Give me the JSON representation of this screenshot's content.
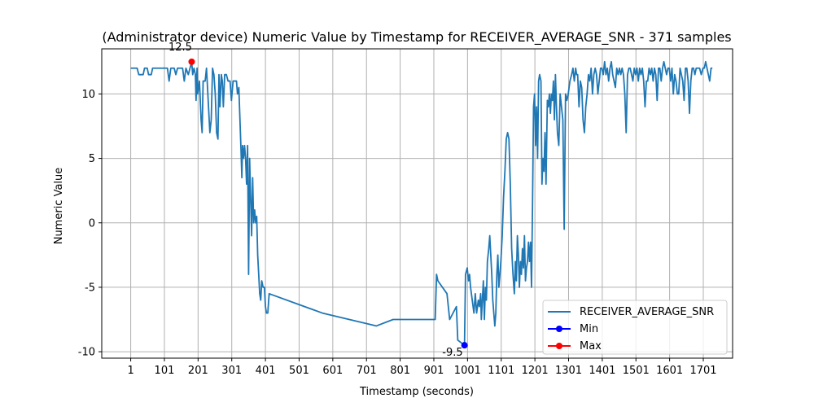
{
  "chart_data": {
    "type": "line",
    "title": "(Administrator device) Numeric Value by Timestamp for RECEIVER_AVERAGE_SNR - 371 samples",
    "xlabel": "Timestamp (seconds)",
    "ylabel": "Numeric Value",
    "xlim": [
      -85,
      1788
    ],
    "ylim": [
      -10.5,
      13.5
    ],
    "x_ticks": [
      1,
      101,
      201,
      301,
      401,
      501,
      601,
      701,
      801,
      901,
      1001,
      1101,
      1201,
      1301,
      1401,
      1501,
      1601,
      1701
    ],
    "y_ticks": [
      -10,
      -5,
      0,
      5,
      10
    ],
    "grid": true,
    "legend_placement": "lower-right",
    "colors": {
      "series": "#1f77b4",
      "min": "#0000ff",
      "max": "#ff0000",
      "grid": "#b0b0b0"
    },
    "series": [
      {
        "name": "RECEIVER_AVERAGE_SNR",
        "points": [
          [
            1,
            12
          ],
          [
            20,
            12
          ],
          [
            25,
            11.5
          ],
          [
            38,
            11.5
          ],
          [
            42,
            12
          ],
          [
            50,
            12
          ],
          [
            54,
            11.5
          ],
          [
            62,
            11.5
          ],
          [
            66,
            12
          ],
          [
            110,
            12
          ],
          [
            115,
            11
          ],
          [
            120,
            12
          ],
          [
            130,
            12
          ],
          [
            135,
            11.5
          ],
          [
            140,
            12
          ],
          [
            155,
            12
          ],
          [
            160,
            11
          ],
          [
            165,
            12
          ],
          [
            172,
            11.5
          ],
          [
            177,
            12
          ],
          [
            182,
            12.5
          ],
          [
            185,
            11.5
          ],
          [
            189,
            12
          ],
          [
            193,
            11.5
          ],
          [
            195,
            9.5
          ],
          [
            198,
            12
          ],
          [
            200,
            10
          ],
          [
            205,
            11
          ],
          [
            210,
            8
          ],
          [
            213,
            7
          ],
          [
            216,
            11
          ],
          [
            222,
            11
          ],
          [
            226,
            12
          ],
          [
            230,
            10
          ],
          [
            236,
            7
          ],
          [
            240,
            8
          ],
          [
            244,
            12
          ],
          [
            248,
            11.5
          ],
          [
            252,
            10
          ],
          [
            256,
            7
          ],
          [
            260,
            6.5
          ],
          [
            263,
            11.5
          ],
          [
            266,
            9
          ],
          [
            270,
            11.5
          ],
          [
            273,
            11
          ],
          [
            276,
            9
          ],
          [
            280,
            11.5
          ],
          [
            285,
            11.5
          ],
          [
            290,
            11
          ],
          [
            296,
            11
          ],
          [
            300,
            9.5
          ],
          [
            305,
            11
          ],
          [
            315,
            11
          ],
          [
            318,
            10
          ],
          [
            322,
            10.5
          ],
          [
            328,
            6
          ],
          [
            331,
            3.5
          ],
          [
            333,
            6
          ],
          [
            336,
            5
          ],
          [
            339,
            6
          ],
          [
            342,
            5
          ],
          [
            345,
            3
          ],
          [
            348,
            6
          ],
          [
            351,
            -4
          ],
          [
            354,
            5
          ],
          [
            357,
            2
          ],
          [
            360,
            -1
          ],
          [
            363,
            3.5
          ],
          [
            366,
            0
          ],
          [
            369,
            1
          ],
          [
            372,
            0
          ],
          [
            375,
            0.5
          ],
          [
            378,
            -2.5
          ],
          [
            381,
            -4
          ],
          [
            384,
            -5.5
          ],
          [
            387,
            -6
          ],
          [
            390,
            -4.5
          ],
          [
            394,
            -5
          ],
          [
            398,
            -5
          ],
          [
            401,
            -6.5
          ],
          [
            404,
            -7
          ],
          [
            408,
            -7
          ],
          [
            412,
            -5.5
          ],
          [
            570,
            -7
          ],
          [
            730,
            -8
          ],
          [
            780,
            -7.5
          ],
          [
            905,
            -7.5
          ],
          [
            909,
            -4
          ],
          [
            913,
            -4.5
          ],
          [
            940,
            -5.5
          ],
          [
            948,
            -7.5
          ],
          [
            968,
            -6.5
          ],
          [
            972,
            -9.1
          ],
          [
            992,
            -9.5
          ],
          [
            995,
            -4
          ],
          [
            1000,
            -3.5
          ],
          [
            1004,
            -4.5
          ],
          [
            1007,
            -4
          ],
          [
            1010,
            -5
          ],
          [
            1015,
            -6
          ],
          [
            1020,
            -7
          ],
          [
            1024,
            -5.5
          ],
          [
            1028,
            -7
          ],
          [
            1033,
            -6
          ],
          [
            1036,
            -6.5
          ],
          [
            1040,
            -5.5
          ],
          [
            1042,
            -7.5
          ],
          [
            1045,
            -6
          ],
          [
            1048,
            -4.5
          ],
          [
            1051,
            -7.5
          ],
          [
            1054,
            -5
          ],
          [
            1057,
            -6
          ],
          [
            1060,
            -3
          ],
          [
            1064,
            -2
          ],
          [
            1067,
            -1
          ],
          [
            1070,
            -2.5
          ],
          [
            1073,
            -4
          ],
          [
            1076,
            -6
          ],
          [
            1079,
            -7
          ],
          [
            1082,
            -8
          ],
          [
            1085,
            -7
          ],
          [
            1088,
            -4
          ],
          [
            1091,
            -2.5
          ],
          [
            1094,
            -5
          ],
          [
            1097,
            -4
          ],
          [
            1100,
            -3
          ],
          [
            1104,
            -1
          ],
          [
            1108,
            2
          ],
          [
            1112,
            4
          ],
          [
            1116,
            6.5
          ],
          [
            1120,
            7
          ],
          [
            1124,
            6.5
          ],
          [
            1128,
            3
          ],
          [
            1132,
            -2
          ],
          [
            1136,
            -4
          ],
          [
            1140,
            -5.5
          ],
          [
            1143,
            -3
          ],
          [
            1146,
            -4.5
          ],
          [
            1149,
            -1
          ],
          [
            1152,
            -2.5
          ],
          [
            1155,
            -5
          ],
          [
            1158,
            -3
          ],
          [
            1161,
            -4
          ],
          [
            1164,
            -2
          ],
          [
            1167,
            -3.5
          ],
          [
            1170,
            -1
          ],
          [
            1173,
            -4.5
          ],
          [
            1176,
            -3.5
          ],
          [
            1179,
            -3
          ],
          [
            1182,
            -1.5
          ],
          [
            1185,
            -3
          ],
          [
            1188,
            -1.5
          ],
          [
            1191,
            -5
          ],
          [
            1194,
            1.5
          ],
          [
            1197,
            9
          ],
          [
            1200,
            10
          ],
          [
            1203,
            6
          ],
          [
            1206,
            9
          ],
          [
            1209,
            5
          ],
          [
            1212,
            11
          ],
          [
            1215,
            11.5
          ],
          [
            1219,
            11
          ],
          [
            1222,
            3
          ],
          [
            1225,
            5
          ],
          [
            1228,
            4
          ],
          [
            1231,
            7
          ],
          [
            1234,
            3
          ],
          [
            1238,
            9.5
          ],
          [
            1241,
            9
          ],
          [
            1244,
            10
          ],
          [
            1247,
            8.5
          ],
          [
            1250,
            10
          ],
          [
            1253,
            9.5
          ],
          [
            1256,
            11
          ],
          [
            1259,
            8
          ],
          [
            1262,
            11.5
          ],
          [
            1265,
            9
          ],
          [
            1268,
            7
          ],
          [
            1272,
            6
          ],
          [
            1276,
            10
          ],
          [
            1280,
            9
          ],
          [
            1284,
            8
          ],
          [
            1288,
            -0.5
          ],
          [
            1292,
            10
          ],
          [
            1296,
            9.5
          ],
          [
            1300,
            10
          ],
          [
            1305,
            11
          ],
          [
            1310,
            11.5
          ],
          [
            1314,
            12
          ],
          [
            1318,
            11
          ],
          [
            1322,
            12
          ],
          [
            1325,
            11.5
          ],
          [
            1328,
            11.5
          ],
          [
            1332,
            9
          ],
          [
            1336,
            11
          ],
          [
            1340,
            10.5
          ],
          [
            1344,
            8
          ],
          [
            1348,
            7
          ],
          [
            1352,
            9
          ],
          [
            1356,
            10
          ],
          [
            1360,
            11.5
          ],
          [
            1364,
            11
          ],
          [
            1368,
            12
          ],
          [
            1372,
            10
          ],
          [
            1376,
            11.5
          ],
          [
            1380,
            12
          ],
          [
            1384,
            11.5
          ],
          [
            1388,
            10
          ],
          [
            1392,
            11
          ],
          [
            1396,
            12
          ],
          [
            1400,
            12
          ],
          [
            1404,
            11.5
          ],
          [
            1408,
            12.5
          ],
          [
            1412,
            11.5
          ],
          [
            1416,
            12
          ],
          [
            1420,
            11
          ],
          [
            1424,
            12
          ],
          [
            1428,
            12.5
          ],
          [
            1432,
            11.5
          ],
          [
            1436,
            11
          ],
          [
            1440,
            10.5
          ],
          [
            1444,
            12
          ],
          [
            1448,
            11.5
          ],
          [
            1452,
            12
          ],
          [
            1456,
            11.5
          ],
          [
            1460,
            12
          ],
          [
            1464,
            11.5
          ],
          [
            1468,
            10
          ],
          [
            1472,
            7
          ],
          [
            1476,
            11.5
          ],
          [
            1480,
            12
          ],
          [
            1484,
            12
          ],
          [
            1488,
            11.5
          ],
          [
            1492,
            11
          ],
          [
            1496,
            12
          ],
          [
            1500,
            11.5
          ],
          [
            1504,
            12
          ],
          [
            1508,
            11
          ],
          [
            1512,
            12
          ],
          [
            1516,
            11.5
          ],
          [
            1520,
            12
          ],
          [
            1524,
            11
          ],
          [
            1528,
            9
          ],
          [
            1532,
            11
          ],
          [
            1536,
            11
          ],
          [
            1540,
            12
          ],
          [
            1544,
            11.5
          ],
          [
            1548,
            12
          ],
          [
            1552,
            11
          ],
          [
            1556,
            12
          ],
          [
            1560,
            11.5
          ],
          [
            1564,
            9.5
          ],
          [
            1568,
            12
          ],
          [
            1572,
            12
          ],
          [
            1576,
            11
          ],
          [
            1580,
            12
          ],
          [
            1584,
            12.5
          ],
          [
            1588,
            12
          ],
          [
            1592,
            11.5
          ],
          [
            1596,
            12
          ],
          [
            1600,
            12
          ],
          [
            1604,
            11
          ],
          [
            1608,
            12
          ],
          [
            1612,
            10
          ],
          [
            1616,
            11.5
          ],
          [
            1620,
            11
          ],
          [
            1624,
            10
          ],
          [
            1628,
            10
          ],
          [
            1632,
            12
          ],
          [
            1636,
            11.5
          ],
          [
            1640,
            11
          ],
          [
            1644,
            9.5
          ],
          [
            1648,
            12
          ],
          [
            1652,
            12
          ],
          [
            1656,
            11
          ],
          [
            1660,
            8.5
          ],
          [
            1664,
            11
          ],
          [
            1668,
            12
          ],
          [
            1672,
            12
          ],
          [
            1676,
            11.5
          ],
          [
            1680,
            12
          ],
          [
            1690,
            12
          ],
          [
            1695,
            11.5
          ],
          [
            1700,
            12
          ],
          [
            1704,
            12
          ],
          [
            1708,
            12.5
          ],
          [
            1712,
            12
          ],
          [
            1716,
            11.5
          ],
          [
            1720,
            11
          ],
          [
            1724,
            12
          ],
          [
            1728,
            12
          ]
        ]
      }
    ],
    "min_marker": {
      "name": "Min",
      "x": 992,
      "y": -9.5,
      "label": "-9.5"
    },
    "max_marker": {
      "name": "Max",
      "x": 182,
      "y": 12.5,
      "label": "12.5"
    },
    "legend": [
      "RECEIVER_AVERAGE_SNR",
      "Min",
      "Max"
    ]
  }
}
